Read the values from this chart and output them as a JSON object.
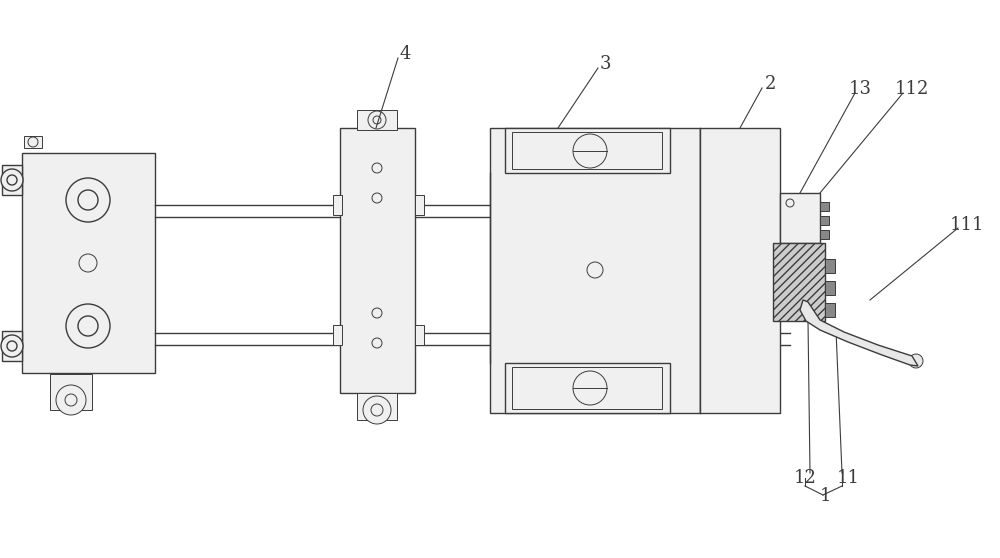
{
  "bg_color": "#ffffff",
  "lc": "#3c3c3c",
  "lw": 1.0,
  "lw2": 0.7,
  "fs": 13,
  "gray_light": "#f0f0f0",
  "gray_med": "#cccccc",
  "gray_dark": "#888888"
}
